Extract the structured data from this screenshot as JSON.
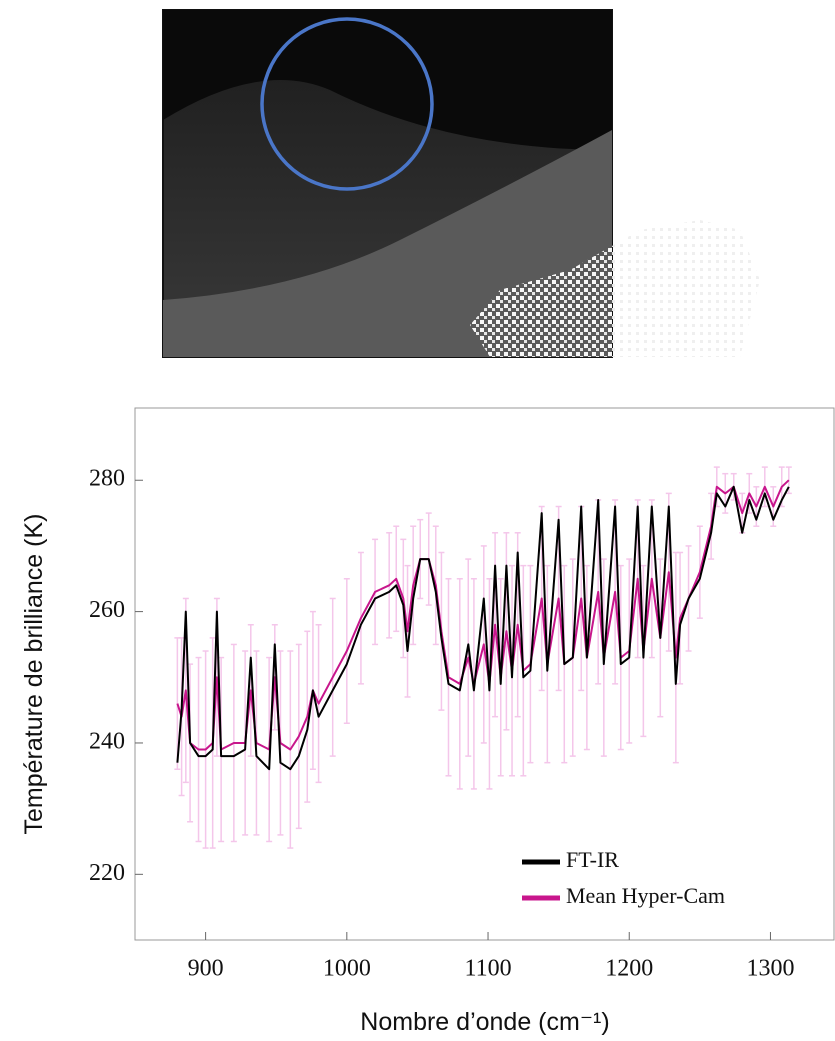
{
  "chart_data": {
    "type": "line",
    "x_label": "Nombre d’onde (cm⁻¹)",
    "y_label": "Température de brilliance (K)",
    "x": [
      880,
      883,
      886,
      889,
      895,
      900,
      905,
      908,
      911,
      920,
      928,
      932,
      936,
      945,
      949,
      953,
      960,
      966,
      972,
      976,
      980,
      990,
      1000,
      1010,
      1020,
      1030,
      1035,
      1040,
      1043,
      1047,
      1052,
      1058,
      1063,
      1067,
      1072,
      1080,
      1086,
      1090,
      1097,
      1101,
      1105,
      1109,
      1113,
      1117,
      1121,
      1125,
      1130,
      1138,
      1142,
      1150,
      1154,
      1160,
      1166,
      1170,
      1178,
      1182,
      1190,
      1194,
      1200,
      1206,
      1210,
      1216,
      1222,
      1228,
      1233,
      1236,
      1242,
      1250,
      1258,
      1262,
      1268,
      1274,
      1280,
      1285,
      1290,
      1296,
      1302,
      1308,
      1313
    ],
    "series": [
      {
        "name": "FT-IR",
        "color": "#000000",
        "values": [
          237,
          245,
          260,
          240,
          238,
          238,
          239,
          260,
          238,
          238,
          239,
          253,
          238,
          236,
          255,
          237,
          236,
          238,
          242,
          248,
          244,
          248,
          252,
          258,
          262,
          263,
          264,
          261,
          254,
          262,
          268,
          268,
          263,
          256,
          249,
          248,
          255,
          248,
          262,
          248,
          267,
          249,
          267,
          250,
          269,
          250,
          251,
          275,
          251,
          274,
          252,
          253,
          276,
          253,
          277,
          252,
          276,
          252,
          253,
          276,
          253,
          276,
          256,
          276,
          249,
          258,
          262,
          265,
          272,
          278,
          276,
          279,
          272,
          277,
          274,
          278,
          274,
          277,
          279
        ]
      },
      {
        "name": "Mean Hyper-Cam",
        "color": "#c8168c",
        "error_color": "#f4c6ea",
        "values": [
          246,
          244,
          248,
          240,
          239,
          239,
          240,
          250,
          239,
          240,
          240,
          248,
          240,
          239,
          250,
          240,
          239,
          241,
          244,
          248,
          246,
          250,
          254,
          259,
          263,
          264,
          265,
          262,
          257,
          264,
          268,
          268,
          264,
          257,
          250,
          249,
          253,
          249,
          255,
          249,
          258,
          250,
          257,
          251,
          258,
          251,
          252,
          262,
          252,
          262,
          252,
          253,
          262,
          253,
          263,
          253,
          263,
          253,
          254,
          265,
          254,
          265,
          256,
          266,
          253,
          259,
          262,
          266,
          273,
          279,
          278,
          279,
          275,
          278,
          276,
          279,
          276,
          279,
          280
        ],
        "errors": [
          10,
          12,
          14,
          12,
          14,
          15,
          16,
          12,
          14,
          15,
          14,
          10,
          14,
          14,
          8,
          14,
          15,
          14,
          13,
          12,
          12,
          12,
          11,
          10,
          8,
          8,
          8,
          9,
          10,
          9,
          6,
          7,
          9,
          12,
          15,
          16,
          15,
          16,
          15,
          16,
          14,
          15,
          15,
          16,
          14,
          16,
          15,
          14,
          15,
          14,
          15,
          15,
          14,
          14,
          14,
          15,
          14,
          14,
          14,
          12,
          13,
          12,
          12,
          12,
          16,
          10,
          8,
          7,
          5,
          3,
          3,
          2,
          3,
          3,
          3,
          3,
          3,
          3,
          2
        ]
      }
    ],
    "xlim": [
      850,
      1345
    ],
    "xticks": [
      900,
      1000,
      1100,
      1200,
      1300
    ],
    "ylim": [
      210,
      291
    ],
    "yticks": [
      220,
      240,
      260,
      280
    ],
    "legend": "lower right"
  }
}
